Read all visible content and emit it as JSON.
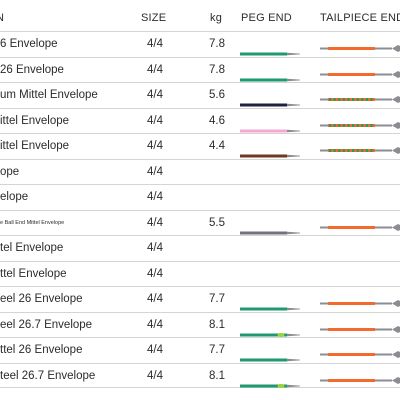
{
  "header": {
    "name": "N",
    "size": "SIZE",
    "kg": "kg",
    "peg_end": "PEG END",
    "tailpiece_end": "TAILPIECE END"
  },
  "rows": [
    {
      "name": "6 Envelope",
      "size": "4/4",
      "kg": "7.8",
      "peg_color": "#1f9a6e",
      "tail": "orange"
    },
    {
      "name": " 26 Envelope",
      "size": "4/4",
      "kg": "7.8",
      "peg_color": "#1f9a6e",
      "tail": "orange"
    },
    {
      "name": "um Mittel Envelope",
      "size": "4/4",
      "kg": "5.6",
      "peg_color": "#1c2340",
      "tail": "striped"
    },
    {
      "name": "ittel Envelope",
      "size": "4/4",
      "kg": "4.6",
      "peg_color": "#f3a8d6",
      "tail": "striped"
    },
    {
      "name": "ittel Envelope",
      "size": "4/4",
      "kg": "4.4",
      "peg_color": "#6b3a20",
      "tail": "striped"
    },
    {
      "name": "ope",
      "size": "4/4",
      "kg": "",
      "peg_color": "",
      "tail": ""
    },
    {
      "name": "elope",
      "size": "4/4",
      "kg": "",
      "peg_color": "",
      "tail": ""
    },
    {
      "name": "e Ball End Mittel Envelope",
      "size": "4/4",
      "kg": "5.5",
      "peg_color": "#707378",
      "tail": "orange",
      "tiny": true
    },
    {
      "name": "tel Envelope",
      "size": "4/4",
      "kg": "",
      "peg_color": "",
      "tail": ""
    },
    {
      "name": "ttel Envelope",
      "size": "4/4",
      "kg": "",
      "peg_color": "",
      "tail": ""
    },
    {
      "name": "eel 26 Envelope",
      "size": "4/4",
      "kg": "7.7",
      "peg_color": "#1f9a6e",
      "tail": "orange"
    },
    {
      "name": "eel 26.7 Envelope",
      "size": "4/4",
      "kg": "8.1",
      "peg_color": "#1f9a6e",
      "peg_dot": true,
      "tail": "orange"
    },
    {
      "name": "ttel 26 Envelope",
      "size": "4/4",
      "kg": "7.7",
      "peg_color": "#1f9a6e",
      "tail": "orange"
    },
    {
      "name": "teel 26.7 Envelope",
      "size": "4/4",
      "kg": "8.1",
      "peg_color": "#1f9a6e",
      "peg_dot": true,
      "tail": "orange"
    }
  ],
  "colors": {
    "orange": "#f26a2d",
    "green_wrap": "#2f9a52",
    "dot": "#9bd33a",
    "metal": "#8a8d92"
  }
}
